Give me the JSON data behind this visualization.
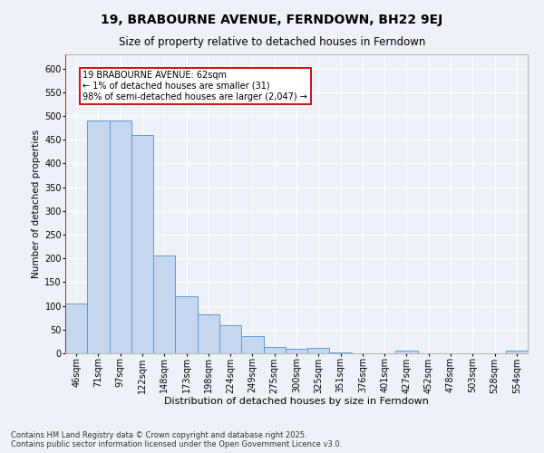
{
  "title": "19, BRABOURNE AVENUE, FERNDOWN, BH22 9EJ",
  "subtitle": "Size of property relative to detached houses in Ferndown",
  "xlabel": "Distribution of detached houses by size in Ferndown",
  "ylabel": "Number of detached properties",
  "categories": [
    "46sqm",
    "71sqm",
    "97sqm",
    "122sqm",
    "148sqm",
    "173sqm",
    "198sqm",
    "224sqm",
    "249sqm",
    "275sqm",
    "300sqm",
    "325sqm",
    "351sqm",
    "376sqm",
    "401sqm",
    "427sqm",
    "452sqm",
    "478sqm",
    "503sqm",
    "528sqm",
    "554sqm"
  ],
  "values": [
    105,
    490,
    490,
    460,
    207,
    121,
    82,
    59,
    37,
    14,
    10,
    11,
    2,
    0,
    0,
    6,
    0,
    0,
    0,
    0,
    5
  ],
  "bar_color": "#c5d8f0",
  "bar_edge_color": "#5b9bd5",
  "annotation_line_color": "#cc0000",
  "annotation_box_text": "19 BRABOURNE AVENUE: 62sqm\n← 1% of detached houses are smaller (31)\n98% of semi-detached houses are larger (2,047) →",
  "annotation_box_color": "#cc0000",
  "background_color": "#eef2f8",
  "grid_color": "#ffffff",
  "footnote": "Contains HM Land Registry data © Crown copyright and database right 2025.\nContains public sector information licensed under the Open Government Licence v3.0.",
  "ylim": [
    0,
    630
  ],
  "yticks": [
    0,
    50,
    100,
    150,
    200,
    250,
    300,
    350,
    400,
    450,
    500,
    550,
    600
  ],
  "title_fontsize": 10,
  "subtitle_fontsize": 8.5,
  "xlabel_fontsize": 8,
  "ylabel_fontsize": 7.5,
  "tick_fontsize": 7,
  "annot_fontsize": 7,
  "footnote_fontsize": 6
}
